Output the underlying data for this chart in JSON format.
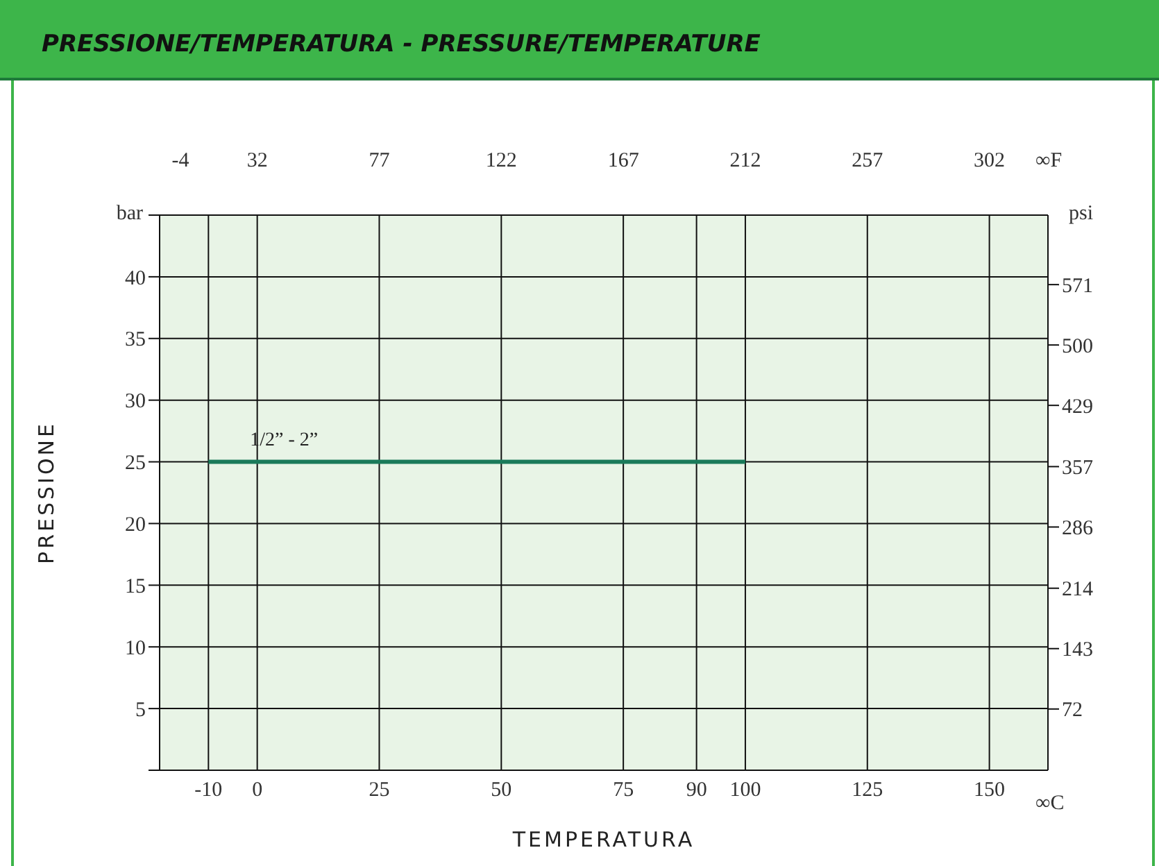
{
  "chart_data": {
    "type": "line",
    "title": "PRESSIONE/TEMPERATURA - PRESSURE/TEMPERATURE",
    "xlabel": "TEMPERATURA",
    "ylabel": "PRESSIONE",
    "y2label": "psi",
    "x2label": "∞F",
    "annotations": [
      "bar",
      "∞C"
    ],
    "xlim": [
      -20,
      162
    ],
    "xticks": [
      -10,
      0,
      25,
      50,
      75,
      90,
      100,
      125,
      150
    ],
    "x2lim": [
      -4,
      323.6
    ],
    "x2ticks": [
      -4,
      32,
      77,
      122,
      167,
      212,
      257,
      302
    ],
    "ylim": [
      0,
      45
    ],
    "yticks": [
      {
        "value": 0,
        "label": null
      },
      5,
      10,
      15,
      20,
      25,
      30,
      35,
      40,
      {
        "value": 45,
        "label": null
      }
    ],
    "y2lim": [
      0,
      652.7
    ],
    "y2ticks": [
      72,
      143,
      214,
      286,
      357,
      429,
      500,
      571
    ],
    "grid": true,
    "marker": "none",
    "line_style": "solid",
    "series": [
      {
        "name": "1/2” - 2”",
        "color": "#1a7a5a",
        "x": [
          -10,
          100
        ],
        "values": [
          25,
          25
        ]
      }
    ]
  }
}
